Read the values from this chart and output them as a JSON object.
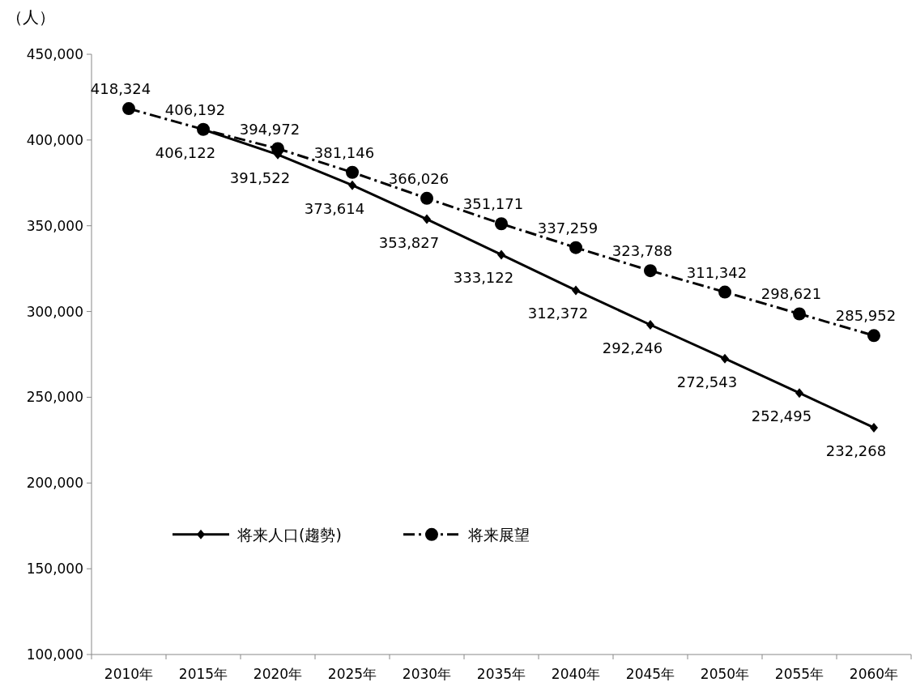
{
  "chart_data": {
    "type": "line",
    "ylabel": "（人）",
    "categories": [
      "2010年",
      "2015年",
      "2020年",
      "2025年",
      "2030年",
      "2035年",
      "2040年",
      "2045年",
      "2050年",
      "2055年",
      "2060年"
    ],
    "series": [
      {
        "name": "将来人口(趨勢)",
        "color": "#000000",
        "marker": "diamond",
        "line_style": "solid",
        "values": [
          null,
          406122,
          391522,
          373614,
          353827,
          333122,
          312372,
          292246,
          272543,
          252495,
          232268
        ],
        "value_labels": [
          null,
          "406,122",
          "391,522",
          "373,614",
          "353,827",
          "333,122",
          "312,372",
          "292,246",
          "272,543",
          "252,495",
          "232,268"
        ]
      },
      {
        "name": "将来展望",
        "color": "#000000",
        "marker": "circle",
        "line_style": "dashed",
        "values": [
          418324,
          406192,
          394972,
          381146,
          366026,
          351171,
          337259,
          323788,
          311342,
          298621,
          285952
        ],
        "value_labels": [
          "418,324",
          "406,192",
          "394,972",
          "381,146",
          "366,026",
          "351,171",
          "337,259",
          "323,788",
          "311,342",
          "298,621",
          "285,952"
        ]
      }
    ],
    "ylim": [
      100000,
      450000
    ],
    "yticks": [
      {
        "value": 100000,
        "label": "100,000"
      },
      {
        "value": 150000,
        "label": "150,000"
      },
      {
        "value": 200000,
        "label": "200,000"
      },
      {
        "value": 250000,
        "label": "250,000"
      },
      {
        "value": 300000,
        "label": "300,000"
      },
      {
        "value": 350000,
        "label": "350,000"
      },
      {
        "value": 400000,
        "label": "400,000"
      },
      {
        "value": 450000,
        "label": "450,000"
      }
    ],
    "grid": false,
    "legend": "left"
  }
}
